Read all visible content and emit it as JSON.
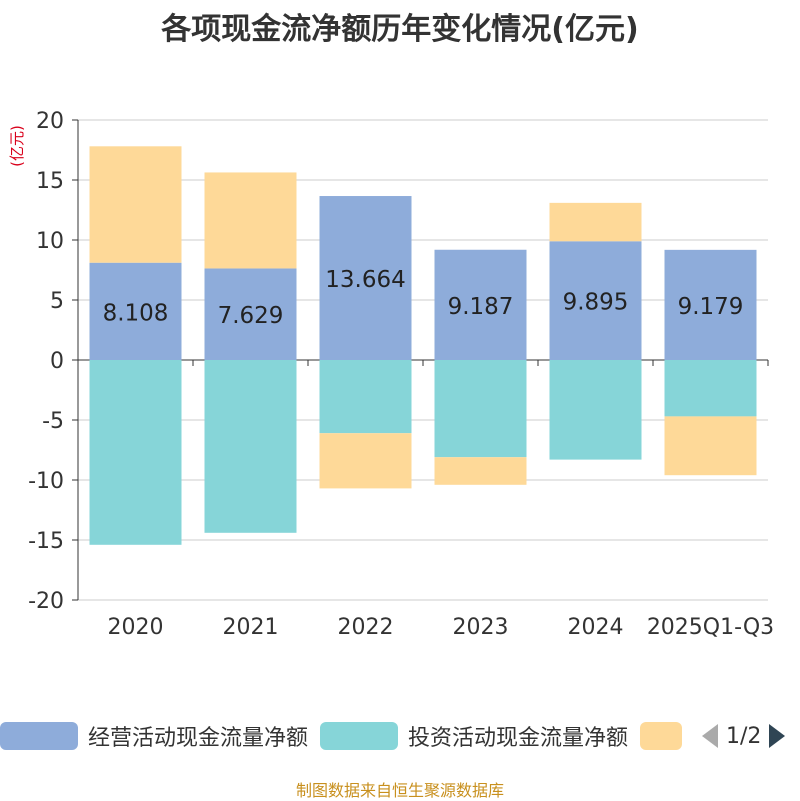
{
  "title": "各项现金流净额历年变化情况(亿元)",
  "chart_data": {
    "type": "bar",
    "stacked": true,
    "title": "各项现金流净额历年变化情况(亿元)",
    "ylabel": "(亿元)",
    "ylim": [
      -20,
      20
    ],
    "yticks": [
      20,
      15,
      10,
      5,
      0,
      -5,
      -10,
      -15,
      -20
    ],
    "categories": [
      "2020",
      "2021",
      "2022",
      "2023",
      "2024",
      "2025Q1-Q3"
    ],
    "series": [
      {
        "name": "经营活动现金流量净额",
        "color": "#8eacda",
        "values": [
          8.108,
          7.629,
          13.664,
          9.187,
          9.895,
          9.179
        ],
        "labels": [
          "8.108",
          "7.629",
          "13.664",
          "9.187",
          "9.895",
          "9.179"
        ]
      },
      {
        "name": "投资活动现金流量净额",
        "color": "#86d5d8",
        "values": [
          -15.4,
          -14.4,
          -6.1,
          -8.1,
          -8.3,
          -4.7
        ]
      },
      {
        "name": "",
        "color": "#fed998",
        "values": [
          9.7,
          8.0,
          -4.6,
          -2.3,
          3.2,
          -4.9
        ]
      }
    ],
    "legend_position": "bottom"
  },
  "legend": {
    "items": [
      {
        "label": "经营活动现金流量净额",
        "color": "#8eacda"
      },
      {
        "label": "投资活动现金流量净额",
        "color": "#86d5d8"
      },
      {
        "label": "",
        "color": "#fed998"
      }
    ],
    "page": "1/2"
  },
  "footer": "制图数据来自恒生聚源数据库"
}
